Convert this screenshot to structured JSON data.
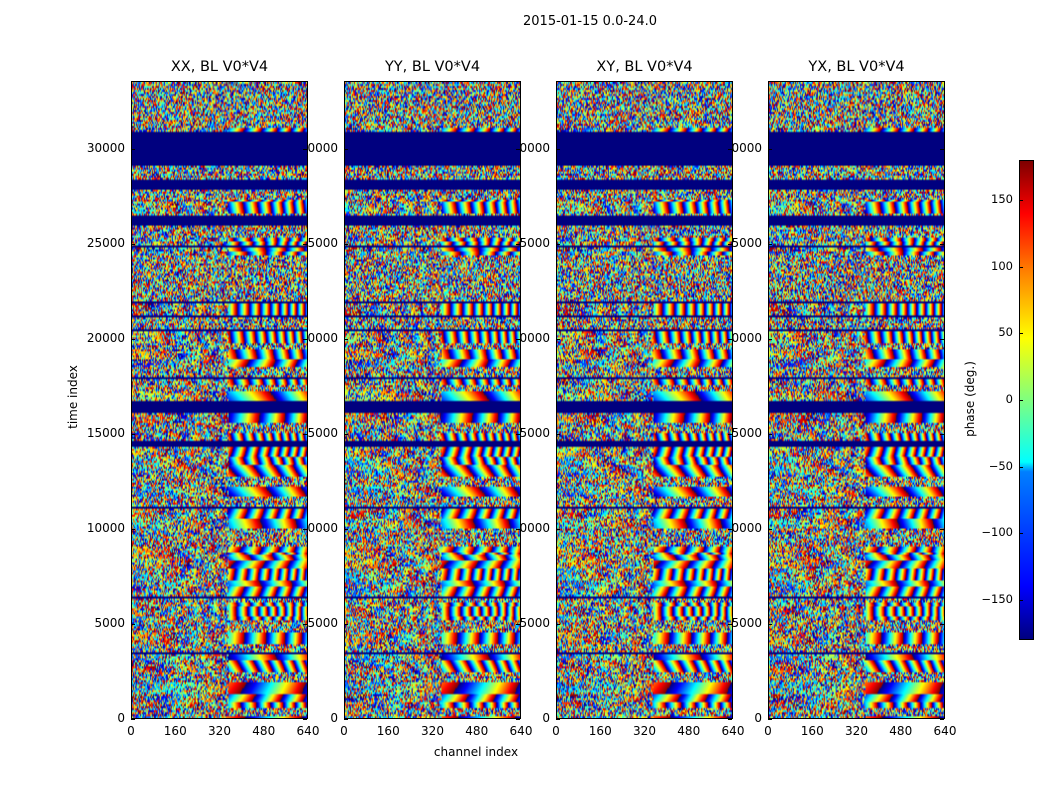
{
  "chart_data": {
    "type": "heatmap",
    "title": "2015-01-15 0.0-24.0",
    "panels": [
      {
        "title": "XX, BL V0*V4"
      },
      {
        "title": "YY, BL V0*V4"
      },
      {
        "title": "XY, BL V0*V4"
      },
      {
        "title": "YX, BL V0*V4"
      }
    ],
    "xlabel": "channel index",
    "ylabel": "time index",
    "xlim": [
      0,
      640
    ],
    "ylim": [
      0,
      33600
    ],
    "xticks": [
      "0",
      "160",
      "320",
      "480",
      "640"
    ],
    "yticks": [
      "0",
      "5000",
      "10000",
      "15000",
      "20000",
      "25000",
      "30000"
    ],
    "colorbar": {
      "label": "phase (deg.)",
      "range": [
        -180,
        180
      ],
      "ticks": [
        "150",
        "100",
        "50",
        "0",
        "−50",
        "−100",
        "−150"
      ],
      "colormap": "jet"
    },
    "masked_bands_time_index": [
      [
        29300,
        31000
      ],
      [
        26100,
        26500
      ]
    ]
  }
}
